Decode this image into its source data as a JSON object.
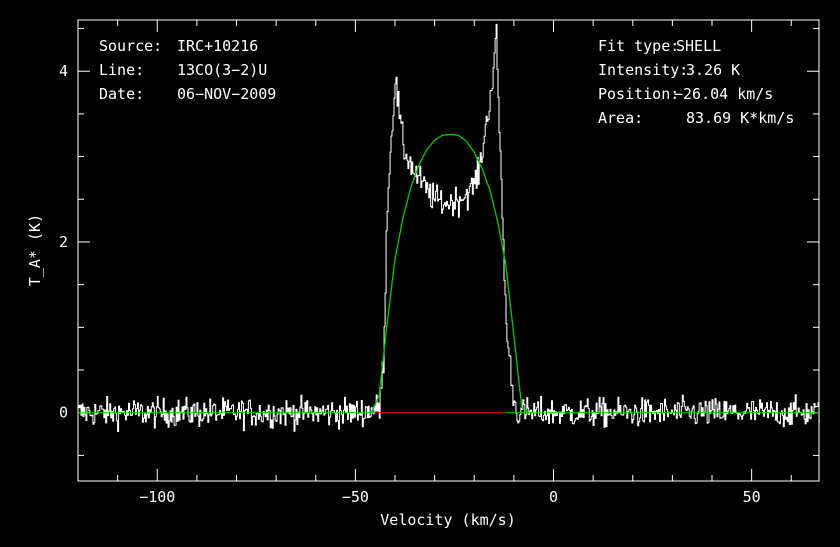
{
  "chart_data": {
    "type": "line",
    "xlabel": "Velocity (km/s)",
    "ylabel": "T_A* (K)",
    "xlim": [
      -120,
      67
    ],
    "ylim": [
      -0.8,
      4.6
    ],
    "x_ticks": [
      -100,
      -50,
      0,
      50
    ],
    "x_tick_labels": [
      "−100",
      "−50",
      "0",
      "50"
    ],
    "y_ticks": [
      0,
      2,
      4
    ],
    "y_tick_labels": [
      "0",
      "2",
      "4"
    ],
    "info_left": [
      {
        "key": "Source:",
        "value": "IRC+10216"
      },
      {
        "key": "Line:",
        "value": "13CO(3−2)U"
      },
      {
        "key": "Date:",
        "value": "06−NOV−2009"
      }
    ],
    "info_right": [
      {
        "key": "Fit type:",
        "value": "SHELL"
      },
      {
        "key": "Intensity:",
        "value": "3.26 K"
      },
      {
        "key": "Position:",
        "value": "−26.04 km/s"
      },
      {
        "key": "Area:",
        "value": "83.69 K*km/s"
      }
    ],
    "colors": {
      "spectrum": "#ffffff",
      "fit": "#00cc00",
      "baseline": "#cc0000",
      "axes": "#ffffff",
      "background": "#000000"
    },
    "series": [
      {
        "style": "histogram",
        "noise_rms": 0.12,
        "x": [
          -120,
          -50,
          -44,
          -43,
          -42,
          -40.5,
          -40,
          -38,
          -35,
          -32,
          -30,
          -27,
          -24,
          -21,
          -19,
          -17,
          -15.5,
          -14.5,
          -13.5,
          -12,
          -10,
          -9,
          0,
          67
        ],
        "y": [
          0,
          0,
          0.05,
          0.6,
          2.5,
          3.6,
          3.9,
          3.1,
          2.8,
          2.6,
          2.5,
          2.45,
          2.5,
          2.6,
          2.8,
          3.4,
          3.9,
          4.4,
          3.0,
          1.0,
          0.1,
          0,
          0,
          0
        ]
      },
      {
        "style": "fit",
        "x": [
          -46,
          -44,
          -42,
          -40,
          -38,
          -36,
          -34,
          -32,
          -30,
          -28,
          -26.04,
          -24,
          -22,
          -20,
          -18,
          -16,
          -14,
          -12,
          -10,
          -8,
          -6
        ],
        "y": [
          0,
          0.2,
          1.04,
          1.8,
          2.28,
          2.64,
          2.9,
          3.08,
          3.19,
          3.25,
          3.26,
          3.25,
          3.18,
          3.05,
          2.86,
          2.6,
          2.22,
          1.72,
          0.9,
          0.06,
          0
        ]
      },
      {
        "style": "baseline",
        "x": [
          -45,
          -12
        ],
        "y": [
          0,
          0
        ]
      }
    ]
  }
}
